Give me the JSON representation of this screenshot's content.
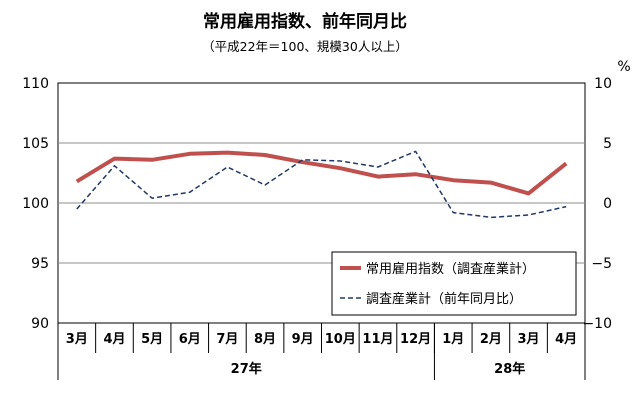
{
  "chart_data": {
    "type": "line",
    "title": "常用雇用指数、前年同月比",
    "subtitle": "（平成22年＝100、規模30人以上）",
    "categories": [
      "3月",
      "4月",
      "5月",
      "6月",
      "7月",
      "8月",
      "9月",
      "10月",
      "11月",
      "12月",
      "1月",
      "2月",
      "3月",
      "4月"
    ],
    "year_groups": [
      {
        "label": "27年",
        "span": 10
      },
      {
        "label": "28年",
        "span": 4
      }
    ],
    "y_left": {
      "min": 90,
      "max": 110,
      "ticks": [
        90,
        95,
        100,
        105,
        110
      ]
    },
    "y_right": {
      "min": -10,
      "max": 10,
      "ticks": [
        -10,
        -5,
        0,
        5,
        10
      ],
      "tick_labels": [
        "−10",
        "−5",
        "0",
        "5",
        "10"
      ],
      "unit": "%"
    },
    "grid": true,
    "legend_position": "bottom-right",
    "series": [
      {
        "name": "常用雇用指数（調査産業計）",
        "axis": "left",
        "color": "#c0504d",
        "style": "solid",
        "values": [
          101.8,
          103.7,
          103.6,
          104.1,
          104.2,
          104.0,
          103.4,
          102.9,
          102.2,
          102.4,
          101.9,
          101.7,
          100.8,
          103.3
        ]
      },
      {
        "name": "調査産業計（前年同月比）",
        "axis": "right",
        "color": "#1f3864",
        "style": "dashed",
        "values": [
          -0.5,
          3.1,
          0.4,
          0.9,
          3.0,
          1.5,
          3.6,
          3.5,
          3.0,
          4.3,
          -0.8,
          -1.2,
          -1.0,
          -0.3
        ]
      }
    ]
  }
}
